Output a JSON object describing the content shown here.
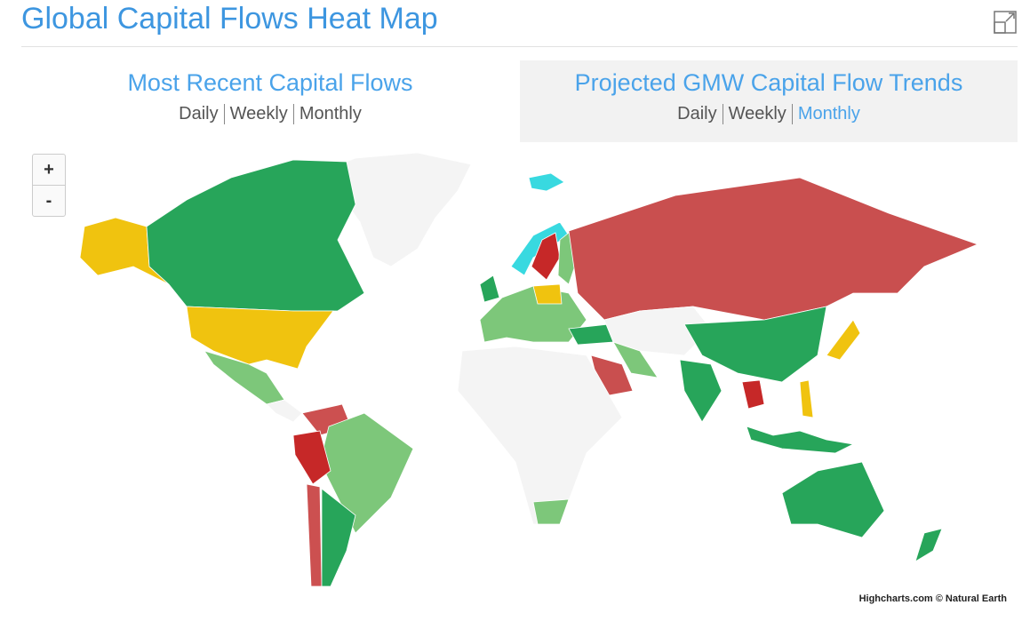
{
  "header": {
    "title": "Global Capital Flows Heat Map"
  },
  "tabs": [
    {
      "title": "Most Recent Capital Flows",
      "periods": [
        "Daily",
        "Weekly",
        "Monthly"
      ]
    },
    {
      "title": "Projected GMW Capital Flow Trends",
      "periods": [
        "Daily",
        "Weekly",
        "Monthly"
      ]
    }
  ],
  "active_tab": 1,
  "selected_period": 2,
  "zoom": {
    "in": "+",
    "out": "-"
  },
  "credits": "Highcharts.com © Natural Earth"
}
